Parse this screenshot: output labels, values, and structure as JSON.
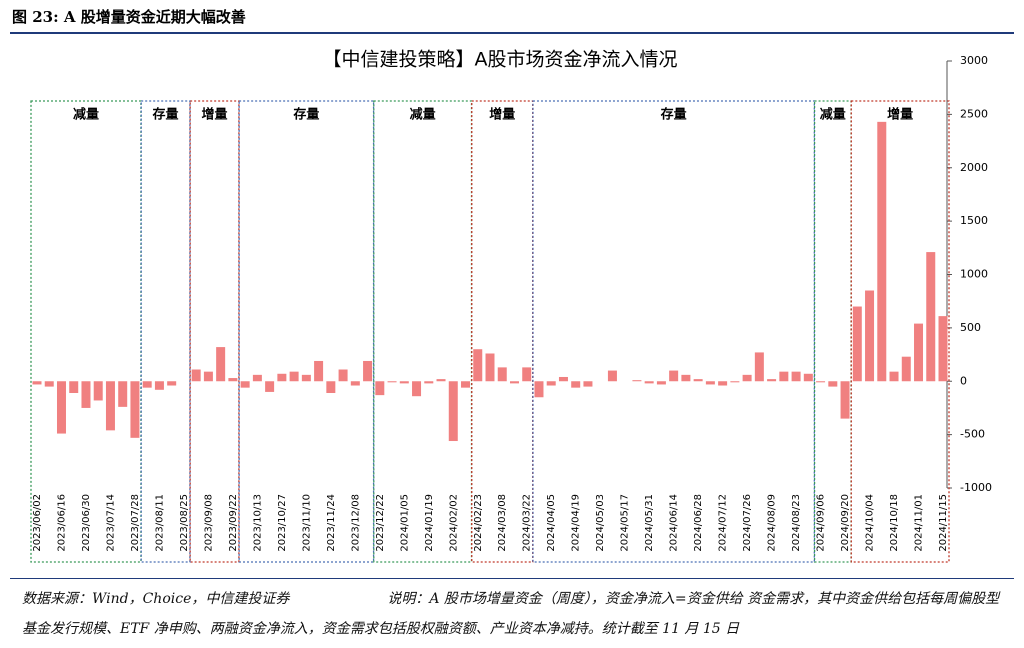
{
  "header": {
    "title": "图 23: A 股增量资金近期大幅改善"
  },
  "chart_data": {
    "type": "bar",
    "title": "【中信建投策略】A股市场资金净流入情况",
    "categories": [
      "2023/06/02",
      null,
      "2023/06/16",
      null,
      "2023/06/30",
      null,
      "2023/07/14",
      null,
      "2023/07/28",
      null,
      "2023/08/11",
      null,
      "2023/08/25",
      null,
      "2023/09/08",
      null,
      "2023/09/22",
      null,
      "2023/10/13",
      null,
      "2023/10/27",
      null,
      "2023/11/10",
      null,
      "2023/11/24",
      null,
      "2023/12/08",
      null,
      "2023/12/22",
      null,
      "2024/01/05",
      null,
      "2024/01/19",
      null,
      "2024/02/02",
      null,
      "2024/02/23",
      null,
      "2024/03/08",
      null,
      "2024/03/22",
      null,
      "2024/04/05",
      null,
      "2024/04/19",
      null,
      "2024/05/03",
      null,
      "2024/05/17",
      null,
      "2024/05/31",
      null,
      "2024/06/14",
      null,
      "2024/06/28",
      null,
      "2024/07/12",
      null,
      "2024/07/26",
      null,
      "2024/08/09",
      null,
      "2024/08/23",
      null,
      "2024/09/06",
      null,
      "2024/09/20",
      null,
      "2024/10/04",
      null,
      "2024/10/18",
      null,
      "2024/11/01",
      null,
      "2024/11/15"
    ],
    "values": [
      -30,
      -50,
      -490,
      -110,
      -250,
      -180,
      -460,
      -240,
      -530,
      -60,
      -80,
      -40,
      0,
      110,
      90,
      320,
      30,
      -60,
      60,
      -100,
      70,
      90,
      60,
      190,
      -110,
      110,
      -40,
      190,
      -130,
      -10,
      -20,
      -140,
      -20,
      20,
      -560,
      -60,
      300,
      260,
      130,
      -20,
      130,
      -150,
      -40,
      40,
      -60,
      -50,
      0,
      100,
      0,
      10,
      -20,
      -30,
      100,
      60,
      20,
      -30,
      -40,
      -10,
      60,
      270,
      20,
      90,
      90,
      70,
      -10,
      -50,
      -350,
      700,
      850,
      2430,
      90,
      230,
      540,
      1210,
      610
    ],
    "color": "#f08080",
    "ylim": [
      -1000,
      3000
    ],
    "yticks": [
      3000,
      2500,
      2000,
      1500,
      1000,
      500,
      0,
      -500,
      -1000
    ],
    "regions": [
      {
        "label": "减量",
        "from": 0,
        "to": 8,
        "color": "#3a9a5a"
      },
      {
        "label": "存量",
        "from": 9,
        "to": 12,
        "color": "#4a6fb5"
      },
      {
        "label": "增量",
        "from": 13,
        "to": 16,
        "color": "#c0392b"
      },
      {
        "label": "存量",
        "from": 17,
        "to": 27,
        "color": "#4a6fb5"
      },
      {
        "label": "减量",
        "from": 28,
        "to": 35,
        "color": "#3a9a5a"
      },
      {
        "label": "增量",
        "from": 36,
        "to": 40,
        "color": "#c0392b"
      },
      {
        "label": "存量",
        "from": 41,
        "to": 63,
        "color": "#4a6fb5"
      },
      {
        "label": "减量",
        "from": 64,
        "to": 66,
        "color": "#3a9a5a"
      },
      {
        "label": "增量",
        "from": 67,
        "to": 74,
        "color": "#c0392b"
      }
    ]
  },
  "footer": {
    "source": "数据来源：Wind，Choice，中信建投证券",
    "note": "说明：A 股市场增量资金（周度），资金净流入=资金供给 资金需求，其中资金供给包括每周偏股型基金发行规模、ETF 净申购、两融资金净流入，资金需求包括股权融资额、产业资本净减持。统计截至 11 月 15 日"
  }
}
